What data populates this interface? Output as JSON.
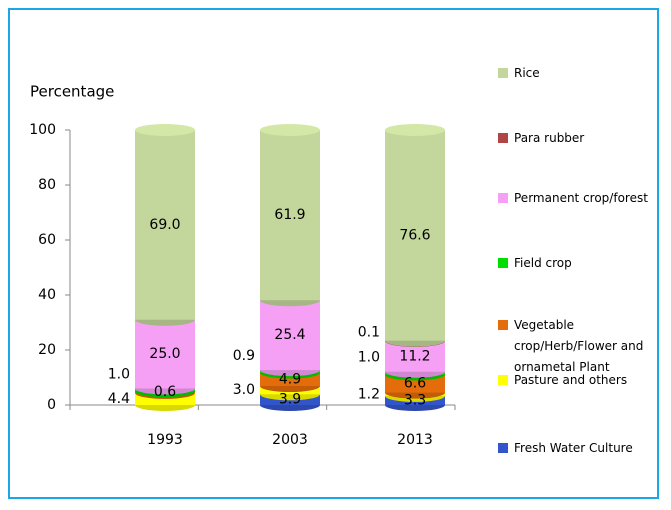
{
  "chart_data": {
    "type": "stacked-cylinder",
    "y_label": "Percentage",
    "categories": [
      "1993",
      "2003",
      "2013"
    ],
    "ylim": [
      0,
      100
    ],
    "yticks": [
      0,
      20,
      40,
      60,
      80,
      100
    ],
    "series": [
      {
        "name": "Fresh Water Culture",
        "color": "#3355cc",
        "values": [
          null,
          3.9,
          3.3
        ],
        "value_labels": [
          null,
          "3.9",
          "3.3"
        ]
      },
      {
        "name": "Pasture and others",
        "color": "#ffff00",
        "values": [
          4.4,
          3.0,
          1.2
        ],
        "value_labels": [
          "4.4",
          "3.0",
          "1.2"
        ]
      },
      {
        "name": "Vegetable crop/Herb/Flower and ornametal Plant",
        "color": "#e46c0a",
        "values": [
          0.6,
          4.9,
          6.6
        ],
        "value_labels": [
          "0.6",
          "4.9",
          "6.6"
        ]
      },
      {
        "name": "Field crop",
        "color": "#00dd00",
        "values": [
          1.0,
          0.9,
          1.0
        ],
        "value_labels": [
          "1.0",
          "0.9",
          "1.0"
        ]
      },
      {
        "name": "Permanent crop/forest",
        "color": "#f5a0f5",
        "values": [
          25.0,
          25.4,
          11.2
        ],
        "value_labels": [
          "25.0",
          "25.4",
          "11.2"
        ]
      },
      {
        "name": "Para rubber",
        "color": "#b04545",
        "values": [
          null,
          null,
          0.1
        ],
        "value_labels": [
          null,
          null,
          "0.1"
        ]
      },
      {
        "name": "Rice",
        "color": "#c3d69b",
        "values": [
          69.0,
          61.9,
          76.6
        ],
        "value_labels": [
          "69.0",
          "61.9",
          "76.6"
        ]
      }
    ]
  }
}
